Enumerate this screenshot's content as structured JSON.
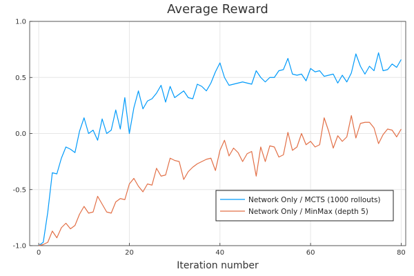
{
  "chart_data": {
    "type": "line",
    "title": "Average Reward",
    "xlabel": "Iteration number",
    "ylabel": "",
    "xlim": [
      -2,
      81
    ],
    "ylim": [
      -1.0,
      1.0
    ],
    "xticks": [
      0,
      20,
      40,
      60,
      80
    ],
    "yticks": [
      -1.0,
      -0.5,
      0.0,
      0.5,
      1.0
    ],
    "ytick_labels": [
      "-1.0",
      "-0.5",
      "0.0",
      "0.5",
      "1.0"
    ],
    "grid": true,
    "legend_position": "bottom-right",
    "series": [
      {
        "name": "Network Only / MCTS (1000 rollouts)",
        "color": "#009AFA",
        "x": [
          0,
          1,
          2,
          3,
          4,
          5,
          6,
          7,
          8,
          9,
          10,
          11,
          12,
          13,
          14,
          15,
          16,
          17,
          18,
          19,
          20,
          21,
          22,
          23,
          24,
          25,
          26,
          27,
          28,
          29,
          30,
          31,
          32,
          33,
          34,
          35,
          36,
          37,
          38,
          39,
          40,
          41,
          42,
          43,
          44,
          45,
          46,
          47,
          48,
          49,
          50,
          51,
          52,
          53,
          54,
          55,
          56,
          57,
          58,
          59,
          60,
          61,
          62,
          63,
          64,
          65,
          66,
          67,
          68,
          69,
          70,
          71,
          72,
          73,
          74,
          75,
          76,
          77,
          78,
          79,
          80
        ],
        "values": [
          -1.0,
          -0.97,
          -0.7,
          -0.35,
          -0.36,
          -0.22,
          -0.12,
          -0.14,
          -0.17,
          0.02,
          0.14,
          0.0,
          0.03,
          -0.06,
          0.13,
          0.0,
          0.03,
          0.21,
          0.04,
          0.32,
          0.0,
          0.23,
          0.38,
          0.22,
          0.29,
          0.31,
          0.36,
          0.43,
          0.28,
          0.42,
          0.32,
          0.35,
          0.38,
          0.32,
          0.31,
          0.44,
          0.42,
          0.38,
          0.45,
          0.55,
          0.63,
          0.5,
          0.43,
          0.44,
          0.45,
          0.46,
          0.45,
          0.44,
          0.56,
          0.5,
          0.46,
          0.5,
          0.5,
          0.56,
          0.57,
          0.67,
          0.53,
          0.52,
          0.53,
          0.47,
          0.58,
          0.55,
          0.56,
          0.51,
          0.52,
          0.53,
          0.45,
          0.52,
          0.46,
          0.54,
          0.71,
          0.6,
          0.53,
          0.6,
          0.56,
          0.72,
          0.56,
          0.57,
          0.62,
          0.59,
          0.66
        ]
      },
      {
        "name": "Network Only / MinMax (depth 5)",
        "color": "#E26F46",
        "x": [
          0,
          1,
          2,
          3,
          4,
          5,
          6,
          7,
          8,
          9,
          10,
          11,
          12,
          13,
          14,
          15,
          16,
          17,
          18,
          19,
          20,
          21,
          22,
          23,
          24,
          25,
          26,
          27,
          28,
          29,
          30,
          31,
          32,
          33,
          34,
          35,
          36,
          37,
          38,
          39,
          40,
          41,
          42,
          43,
          44,
          45,
          46,
          47,
          48,
          49,
          50,
          51,
          52,
          53,
          54,
          55,
          56,
          57,
          58,
          59,
          60,
          61,
          62,
          63,
          64,
          65,
          66,
          67,
          68,
          69,
          70,
          71,
          72,
          73,
          74,
          75,
          76,
          77,
          78,
          79,
          80
        ],
        "values": [
          -1.0,
          -0.99,
          -0.97,
          -0.87,
          -0.93,
          -0.84,
          -0.8,
          -0.85,
          -0.82,
          -0.72,
          -0.65,
          -0.71,
          -0.7,
          -0.56,
          -0.63,
          -0.7,
          -0.71,
          -0.61,
          -0.58,
          -0.59,
          -0.45,
          -0.4,
          -0.47,
          -0.52,
          -0.45,
          -0.46,
          -0.31,
          -0.38,
          -0.37,
          -0.22,
          -0.24,
          -0.25,
          -0.41,
          -0.34,
          -0.3,
          -0.27,
          -0.25,
          -0.23,
          -0.22,
          -0.33,
          -0.15,
          -0.06,
          -0.2,
          -0.13,
          -0.17,
          -0.25,
          -0.18,
          -0.16,
          -0.38,
          -0.12,
          -0.25,
          -0.11,
          -0.12,
          -0.21,
          -0.19,
          0.01,
          -0.15,
          -0.12,
          0.0,
          -0.1,
          -0.07,
          -0.12,
          -0.1,
          0.14,
          0.02,
          -0.13,
          -0.02,
          -0.07,
          -0.03,
          0.16,
          -0.04,
          0.09,
          0.1,
          0.1,
          0.05,
          -0.09,
          -0.01,
          0.04,
          0.03,
          -0.03,
          0.04
        ]
      }
    ]
  }
}
